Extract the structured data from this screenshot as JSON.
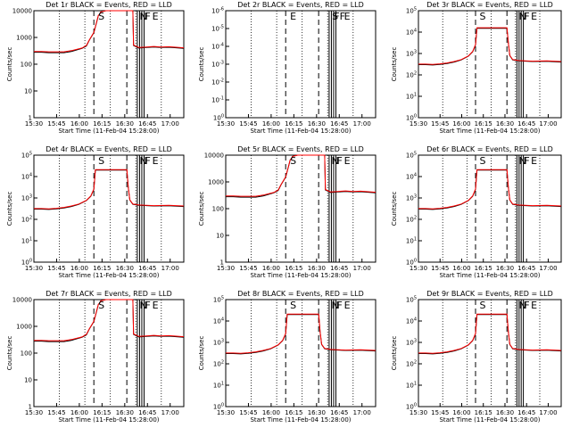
{
  "chart_data": [
    {
      "type": "line",
      "title": "Det 1r BLACK = Events, RED = LLD",
      "ylabel": "Counts/sec",
      "xlabel": "Start Time (11-Feb-04 15:28:00)",
      "x_ticks": [
        "15:30",
        "15:45",
        "16:00",
        "16:15",
        "16:30",
        "16:45",
        "17:00"
      ],
      "y_scale": "log",
      "y_ticks": [
        "1",
        "10",
        "100",
        "1000",
        "10000"
      ],
      "y_range": [
        1,
        10000
      ],
      "x_range": [
        0,
        100
      ],
      "event_labels": [
        "S",
        "N",
        "F",
        "E"
      ],
      "series": [
        {
          "color": "#000000",
          "x": [
            0,
            5,
            10,
            20,
            25,
            32,
            35,
            37,
            40,
            42,
            43,
            44,
            44.5,
            48,
            55,
            63,
            66,
            66.5,
            70,
            75,
            80,
            85,
            90,
            100
          ],
          "y": [
            280,
            280,
            270,
            270,
            300,
            390,
            480,
            800,
            1500,
            4000,
            6500,
            7500,
            9000,
            10000,
            10000,
            10000,
            10000,
            500,
            400,
            420,
            440,
            420,
            430,
            390
          ]
        },
        {
          "color": "#ff0000",
          "x": [
            0,
            5,
            10,
            20,
            25,
            32,
            35,
            37,
            40,
            42,
            43,
            44,
            44.5,
            48,
            55,
            63,
            66,
            66.5,
            70,
            75,
            80,
            85,
            90,
            100
          ],
          "y": [
            300,
            300,
            290,
            290,
            320,
            400,
            500,
            820,
            1550,
            4100,
            6600,
            7600,
            9000,
            10000,
            10000,
            10000,
            10000,
            520,
            420,
            440,
            460,
            440,
            450,
            410
          ]
        }
      ]
    },
    {
      "type": "line",
      "title": "Det 2r BLACK = Events, RED = LLD",
      "ylabel": "Counts/sec",
      "xlabel": "Start Time (11-Feb-04 15:28:00)",
      "x_ticks": [
        "15:30",
        "15:45",
        "16:00",
        "16:15",
        "16:30",
        "16:45",
        "17:00"
      ],
      "y_scale": "log",
      "y_ticks": [
        "10^0",
        "10^-1",
        "10^-2",
        "10^-3",
        "10^-4",
        "10^-5",
        "10^-6"
      ],
      "y_range": [
        1,
        1e-06
      ],
      "x_range": [
        0,
        100
      ],
      "event_labels": [
        "E",
        "S",
        "FF",
        "E"
      ],
      "series": []
    },
    {
      "type": "line",
      "title": "Det 3r BLACK = Events, RED = LLD",
      "ylabel": "Counts/sec",
      "xlabel": "Start Time (11-Feb-04 15:28:00)",
      "x_ticks": [
        "15:30",
        "15:45",
        "16:00",
        "16:15",
        "16:30",
        "16:45",
        "17:00"
      ],
      "y_scale": "log",
      "y_ticks": [
        "10^0",
        "10^1",
        "10^2",
        "10^3",
        "10^4",
        "10^5"
      ],
      "y_range": [
        1,
        100000
      ],
      "x_range": [
        0,
        100
      ],
      "event_labels": [
        "S",
        "N",
        "F",
        "E"
      ],
      "series": [
        {
          "color": "#000000",
          "x": [
            0,
            5,
            10,
            15,
            20,
            25,
            30,
            35,
            38,
            40,
            41,
            48,
            55,
            62,
            63,
            64,
            66,
            70,
            80,
            90,
            100
          ],
          "y": [
            300,
            300,
            290,
            310,
            340,
            400,
            500,
            750,
            1200,
            2500,
            15000,
            15000,
            15000,
            15000,
            3000,
            800,
            500,
            450,
            420,
            430,
            400
          ]
        },
        {
          "color": "#ff0000",
          "x": [
            0,
            5,
            10,
            15,
            20,
            25,
            30,
            35,
            38,
            40,
            41,
            48,
            55,
            62,
            63,
            64,
            66,
            70,
            80,
            90,
            100
          ],
          "y": [
            320,
            320,
            310,
            330,
            360,
            420,
            520,
            770,
            1250,
            2600,
            16000,
            16000,
            16000,
            16000,
            3100,
            820,
            520,
            470,
            440,
            450,
            420
          ]
        }
      ]
    },
    {
      "type": "line",
      "title": "Det 4r BLACK = Events, RED = LLD",
      "ylabel": "Counts/sec",
      "xlabel": "Start Time (11-Feb-04 15:28:00)",
      "x_ticks": [
        "15:30",
        "15:45",
        "16:00",
        "16:15",
        "16:30",
        "16:45",
        "17:00"
      ],
      "y_scale": "log",
      "y_ticks": [
        "10^0",
        "10^1",
        "10^2",
        "10^3",
        "10^4",
        "10^5"
      ],
      "y_range": [
        1,
        100000
      ],
      "x_range": [
        0,
        100
      ],
      "event_labels": [
        "S",
        "N",
        "F",
        "E"
      ],
      "series": [
        {
          "color": "#000000",
          "x": [
            0,
            5,
            10,
            15,
            20,
            25,
            30,
            35,
            38,
            40,
            41,
            48,
            55,
            62,
            63,
            64,
            66,
            70,
            80,
            90,
            100
          ],
          "y": [
            300,
            300,
            290,
            310,
            340,
            400,
            500,
            750,
            1200,
            2500,
            20000,
            20000,
            20000,
            20000,
            3000,
            800,
            500,
            450,
            420,
            430,
            400
          ]
        },
        {
          "color": "#ff0000",
          "x": [
            0,
            5,
            10,
            15,
            20,
            25,
            30,
            35,
            38,
            40,
            41,
            48,
            55,
            62,
            63,
            64,
            66,
            70,
            80,
            90,
            100
          ],
          "y": [
            320,
            320,
            310,
            330,
            360,
            420,
            520,
            770,
            1250,
            2600,
            21000,
            21000,
            21000,
            21000,
            3100,
            820,
            520,
            470,
            440,
            450,
            420
          ]
        }
      ]
    },
    {
      "type": "line",
      "title": "Det 5r BLACK = Events, RED = LLD",
      "ylabel": "Counts/sec",
      "xlabel": "Start Time (11-Feb-04 15:28:00)",
      "x_ticks": [
        "15:30",
        "15:45",
        "16:00",
        "16:15",
        "16:30",
        "16:45",
        "17:00"
      ],
      "y_scale": "log",
      "y_ticks": [
        "1",
        "10",
        "100",
        "1000",
        "10000"
      ],
      "y_range": [
        1,
        10000
      ],
      "x_range": [
        0,
        100
      ],
      "event_labels": [
        "S",
        "N",
        "F",
        "E"
      ],
      "series": [
        {
          "color": "#000000",
          "x": [
            0,
            5,
            10,
            20,
            25,
            32,
            35,
            37,
            40,
            42,
            43,
            44,
            44.5,
            48,
            55,
            63,
            66,
            66.5,
            70,
            75,
            80,
            85,
            90,
            100
          ],
          "y": [
            280,
            280,
            270,
            270,
            300,
            390,
            480,
            800,
            1500,
            4000,
            6500,
            7500,
            9000,
            10000,
            10000,
            10000,
            10000,
            500,
            400,
            420,
            440,
            420,
            430,
            390
          ]
        },
        {
          "color": "#ff0000",
          "x": [
            0,
            5,
            10,
            20,
            25,
            32,
            35,
            37,
            40,
            42,
            43,
            44,
            44.5,
            48,
            55,
            63,
            66,
            66.5,
            70,
            75,
            80,
            85,
            90,
            100
          ],
          "y": [
            300,
            300,
            290,
            290,
            320,
            400,
            500,
            820,
            1550,
            4100,
            6600,
            7600,
            9000,
            10000,
            10000,
            10000,
            10000,
            520,
            420,
            440,
            460,
            440,
            450,
            410
          ]
        }
      ]
    },
    {
      "type": "line",
      "title": "Det 6r BLACK = Events, RED = LLD",
      "ylabel": "Counts/sec",
      "xlabel": "Start Time (11-Feb-04 15:28:00)",
      "x_ticks": [
        "15:30",
        "15:45",
        "16:00",
        "16:15",
        "16:30",
        "16:45",
        "17:00"
      ],
      "y_scale": "log",
      "y_ticks": [
        "10^0",
        "10^1",
        "10^2",
        "10^3",
        "10^4",
        "10^5"
      ],
      "y_range": [
        1,
        100000
      ],
      "x_range": [
        0,
        100
      ],
      "event_labels": [
        "S",
        "N",
        "F",
        "E"
      ],
      "series": [
        {
          "color": "#000000",
          "x": [
            0,
            5,
            10,
            15,
            20,
            25,
            30,
            35,
            38,
            40,
            41,
            48,
            55,
            62,
            63,
            64,
            66,
            70,
            80,
            90,
            100
          ],
          "y": [
            300,
            300,
            290,
            310,
            340,
            400,
            500,
            750,
            1200,
            2500,
            20000,
            20000,
            20000,
            20000,
            3000,
            800,
            500,
            450,
            420,
            430,
            400
          ]
        },
        {
          "color": "#ff0000",
          "x": [
            0,
            5,
            10,
            15,
            20,
            25,
            30,
            35,
            38,
            40,
            41,
            48,
            55,
            62,
            63,
            64,
            66,
            70,
            80,
            90,
            100
          ],
          "y": [
            320,
            320,
            310,
            330,
            360,
            420,
            520,
            770,
            1250,
            2600,
            21000,
            21000,
            21000,
            21000,
            3100,
            820,
            520,
            470,
            440,
            450,
            420
          ]
        }
      ]
    },
    {
      "type": "line",
      "title": "Det 7r BLACK = Events, RED = LLD",
      "ylabel": "Counts/sec",
      "xlabel": "Start Time (11-Feb-04 15:28:00)",
      "x_ticks": [
        "15:30",
        "15:45",
        "16:00",
        "16:15",
        "16:30",
        "16:45",
        "17:00"
      ],
      "y_scale": "log",
      "y_ticks": [
        "1",
        "10",
        "100",
        "1000",
        "10000"
      ],
      "y_range": [
        1,
        10000
      ],
      "x_range": [
        0,
        100
      ],
      "event_labels": [
        "S",
        "N",
        "F",
        "E"
      ],
      "series": [
        {
          "color": "#000000",
          "x": [
            0,
            5,
            10,
            20,
            25,
            32,
            35,
            37,
            40,
            42,
            43,
            44,
            44.5,
            48,
            55,
            63,
            66,
            66.5,
            70,
            75,
            80,
            85,
            90,
            100
          ],
          "y": [
            280,
            280,
            270,
            270,
            300,
            390,
            480,
            800,
            1500,
            4000,
            6500,
            7500,
            9000,
            10000,
            10000,
            10000,
            10000,
            500,
            400,
            420,
            440,
            420,
            430,
            390
          ]
        },
        {
          "color": "#ff0000",
          "x": [
            0,
            5,
            10,
            20,
            25,
            32,
            35,
            37,
            40,
            42,
            43,
            44,
            44.5,
            48,
            55,
            63,
            66,
            66.5,
            70,
            75,
            80,
            85,
            90,
            100
          ],
          "y": [
            300,
            300,
            290,
            290,
            320,
            400,
            500,
            820,
            1550,
            4100,
            6600,
            7600,
            9000,
            10000,
            10000,
            10000,
            10000,
            520,
            420,
            440,
            460,
            440,
            450,
            410
          ]
        }
      ]
    },
    {
      "type": "line",
      "title": "Det 8r BLACK = Events, RED = LLD",
      "ylabel": "Counts/sec",
      "xlabel": "Start Time (11-Feb-04 15:28:00)",
      "x_ticks": [
        "15:30",
        "15:45",
        "16:00",
        "16:15",
        "16:30",
        "16:45",
        "17:00"
      ],
      "y_scale": "log",
      "y_ticks": [
        "10^0",
        "10^1",
        "10^2",
        "10^3",
        "10^4",
        "10^5"
      ],
      "y_range": [
        1,
        100000
      ],
      "x_range": [
        0,
        100
      ],
      "event_labels": [
        "S",
        "N",
        "F",
        "E"
      ],
      "series": [
        {
          "color": "#000000",
          "x": [
            0,
            5,
            10,
            15,
            20,
            25,
            30,
            35,
            38,
            40,
            41,
            48,
            55,
            62,
            63,
            64,
            66,
            70,
            80,
            90,
            100
          ],
          "y": [
            300,
            300,
            290,
            310,
            340,
            400,
            500,
            750,
            1200,
            2500,
            20000,
            20000,
            20000,
            20000,
            3000,
            800,
            500,
            450,
            420,
            430,
            400
          ]
        },
        {
          "color": "#ff0000",
          "x": [
            0,
            5,
            10,
            15,
            20,
            25,
            30,
            35,
            38,
            40,
            41,
            48,
            55,
            62,
            63,
            64,
            66,
            70,
            80,
            90,
            100
          ],
          "y": [
            320,
            320,
            310,
            330,
            360,
            420,
            520,
            770,
            1250,
            2600,
            21000,
            21000,
            21000,
            21000,
            3100,
            820,
            520,
            470,
            440,
            450,
            420
          ]
        }
      ]
    },
    {
      "type": "line",
      "title": "Det 9r BLACK = Events, RED = LLD",
      "ylabel": "Counts/sec",
      "xlabel": "Start Time (11-Feb-04 15:28:00)",
      "x_ticks": [
        "15:30",
        "15:45",
        "16:00",
        "16:15",
        "16:30",
        "16:45",
        "17:00"
      ],
      "y_scale": "log",
      "y_ticks": [
        "10^0",
        "10^1",
        "10^2",
        "10^3",
        "10^4",
        "10^5"
      ],
      "y_range": [
        1,
        100000
      ],
      "x_range": [
        0,
        100
      ],
      "event_labels": [
        "S",
        "N",
        "F",
        "E"
      ],
      "series": [
        {
          "color": "#000000",
          "x": [
            0,
            5,
            10,
            15,
            20,
            25,
            30,
            35,
            38,
            40,
            41,
            48,
            55,
            62,
            63,
            64,
            66,
            70,
            80,
            90,
            100
          ],
          "y": [
            300,
            300,
            290,
            310,
            340,
            400,
            500,
            750,
            1200,
            2500,
            20000,
            20000,
            20000,
            20000,
            3000,
            800,
            500,
            450,
            420,
            430,
            400
          ]
        },
        {
          "color": "#ff0000",
          "x": [
            0,
            5,
            10,
            15,
            20,
            25,
            30,
            35,
            38,
            40,
            41,
            48,
            55,
            62,
            63,
            64,
            66,
            70,
            80,
            90,
            100
          ],
          "y": [
            320,
            320,
            310,
            330,
            360,
            420,
            520,
            770,
            1250,
            2600,
            21000,
            21000,
            21000,
            21000,
            3100,
            820,
            520,
            470,
            440,
            450,
            420
          ]
        }
      ]
    }
  ]
}
